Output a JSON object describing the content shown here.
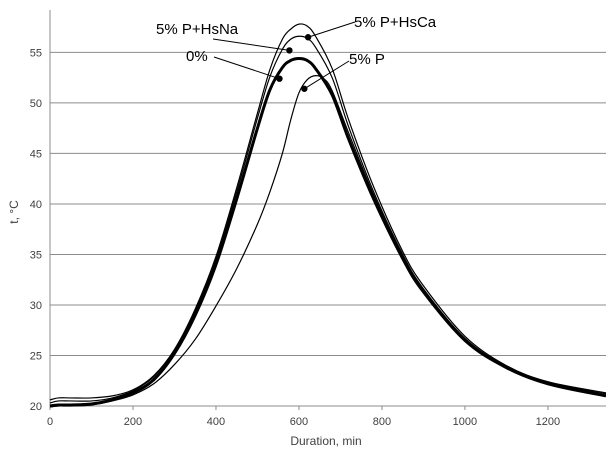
{
  "chart_data": {
    "type": "line",
    "xlabel": "Duration, min",
    "ylabel": "t, °C",
    "xlim": [
      0,
      1340
    ],
    "ylim": [
      20,
      59
    ],
    "x_ticks": [
      0,
      200,
      400,
      600,
      800,
      1000,
      1200
    ],
    "y_ticks": [
      20,
      25,
      30,
      35,
      40,
      45,
      50,
      55
    ],
    "grid": "horizontal",
    "legend": "none",
    "series": [
      {
        "name": "0%",
        "bold": true,
        "x": [
          0,
          20,
          50,
          100,
          150,
          200,
          250,
          300,
          350,
          400,
          450,
          500,
          530,
          560,
          580,
          600,
          620,
          640,
          680,
          720,
          780,
          850,
          900,
          1000,
          1100,
          1200,
          1340
        ],
        "y": [
          20.0,
          20.1,
          20.1,
          20.2,
          20.6,
          21.3,
          22.6,
          25.2,
          29.0,
          34.0,
          40.5,
          47.5,
          51.3,
          53.5,
          54.2,
          54.4,
          54.2,
          53.4,
          50.8,
          46.4,
          40.5,
          34.6,
          31.3,
          26.5,
          23.8,
          22.2,
          21.0
        ],
        "marker": {
          "x": 553,
          "y": 52.4
        },
        "label": "0%"
      },
      {
        "name": "5% P+HsNa",
        "bold": false,
        "x": [
          0,
          20,
          50,
          100,
          150,
          200,
          250,
          300,
          350,
          400,
          450,
          500,
          530,
          560,
          580,
          600,
          620,
          640,
          680,
          720,
          780,
          850,
          900,
          1000,
          1100,
          1200,
          1340
        ],
        "y": [
          20.3,
          20.5,
          20.5,
          20.5,
          20.8,
          21.5,
          22.9,
          25.5,
          29.4,
          34.5,
          41.2,
          48.5,
          52.6,
          55.3,
          56.3,
          56.6,
          56.4,
          55.5,
          52.5,
          47.6,
          41.2,
          35.0,
          31.6,
          26.7,
          23.9,
          22.3,
          21.2
        ],
        "marker": {
          "x": 577,
          "y": 55.2
        },
        "label": "5% P+HsNa"
      },
      {
        "name": "5% P+HsCa",
        "bold": false,
        "x": [
          0,
          20,
          50,
          100,
          150,
          200,
          250,
          300,
          350,
          400,
          450,
          500,
          530,
          560,
          580,
          600,
          620,
          640,
          680,
          720,
          780,
          850,
          900,
          1000,
          1100,
          1200,
          1340
        ],
        "y": [
          20.6,
          20.8,
          20.8,
          20.8,
          21.0,
          21.6,
          23.0,
          25.6,
          29.6,
          34.8,
          41.6,
          49.0,
          53.3,
          56.3,
          57.3,
          57.8,
          57.6,
          56.6,
          53.4,
          48.3,
          41.7,
          35.3,
          31.9,
          26.9,
          24.0,
          22.4,
          21.3
        ],
        "marker": {
          "x": 622,
          "y": 56.5
        },
        "label": "5% P+HsCa"
      },
      {
        "name": "5% P",
        "bold": false,
        "x": [
          0,
          20,
          50,
          100,
          150,
          200,
          250,
          300,
          350,
          400,
          450,
          500,
          530,
          560,
          580,
          600,
          620,
          640,
          660,
          680,
          720,
          780,
          850,
          900,
          1000,
          1100,
          1200,
          1340
        ],
        "y": [
          19.9,
          20.0,
          20.0,
          20.1,
          20.5,
          21.1,
          22.2,
          24.1,
          26.6,
          29.9,
          33.6,
          38.0,
          41.2,
          45.0,
          48.3,
          51.0,
          52.3,
          52.7,
          52.4,
          51.2,
          47.0,
          40.9,
          34.8,
          31.4,
          26.6,
          23.8,
          22.2,
          21.0
        ],
        "marker": {
          "x": 613,
          "y": 51.4
        },
        "label": "5% P"
      }
    ],
    "annotations": [
      {
        "text": "5% P+HsNa",
        "series": "5% P+HsNa"
      },
      {
        "text": "0%",
        "series": "0%"
      },
      {
        "text": "5% P+HsCa",
        "series": "5% P+HsCa"
      },
      {
        "text": "5% P",
        "series": "5% P"
      }
    ]
  }
}
